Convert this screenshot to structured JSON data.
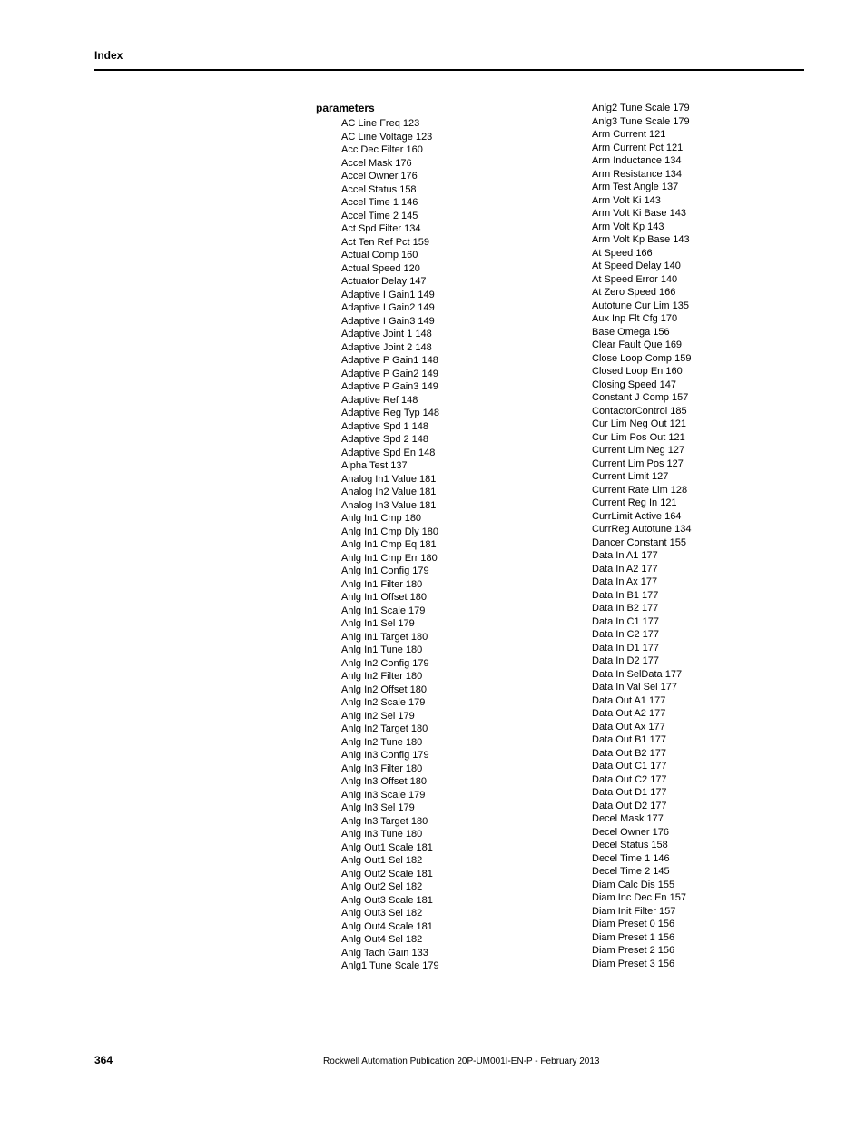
{
  "header_label": "Index",
  "section_title": "parameters",
  "col1": [
    "AC Line Freq 123",
    "AC Line Voltage 123",
    "Acc Dec Filter 160",
    "Accel Mask 176",
    "Accel Owner 176",
    "Accel Status 158",
    "Accel Time 1 146",
    "Accel Time 2 145",
    "Act Spd Filter 134",
    "Act Ten Ref Pct 159",
    "Actual Comp 160",
    "Actual Speed 120",
    "Actuator Delay 147",
    "Adaptive I Gain1 149",
    "Adaptive I Gain2 149",
    "Adaptive I Gain3 149",
    "Adaptive Joint 1 148",
    "Adaptive Joint 2 148",
    "Adaptive P Gain1 148",
    "Adaptive P Gain2 149",
    "Adaptive P Gain3 149",
    "Adaptive Ref 148",
    "Adaptive Reg Typ 148",
    "Adaptive Spd 1 148",
    "Adaptive Spd 2 148",
    "Adaptive Spd En 148",
    "Alpha Test 137",
    "Analog In1 Value 181",
    "Analog In2 Value 181",
    "Analog In3 Value 181",
    "Anlg In1 Cmp 180",
    "Anlg In1 Cmp Dly 180",
    "Anlg In1 Cmp Eq 181",
    "Anlg In1 Cmp Err 180",
    "Anlg In1 Config 179",
    "Anlg In1 Filter 180",
    "Anlg In1 Offset 180",
    "Anlg In1 Scale 179",
    "Anlg In1 Sel 179",
    "Anlg In1 Target 180",
    "Anlg In1 Tune 180",
    "Anlg In2 Config 179",
    "Anlg In2 Filter 180",
    "Anlg In2 Offset 180",
    "Anlg In2 Scale 179",
    "Anlg In2 Sel 179",
    "Anlg In2 Target 180",
    "Anlg In2 Tune 180",
    "Anlg In3 Config 179",
    "Anlg In3 Filter 180",
    "Anlg In3 Offset 180",
    "Anlg In3 Scale 179",
    "Anlg In3 Sel 179",
    "Anlg In3 Target 180",
    "Anlg In3 Tune 180",
    "Anlg Out1 Scale 181",
    "Anlg Out1 Sel 182",
    "Anlg Out2 Scale 181",
    "Anlg Out2 Sel 182",
    "Anlg Out3 Scale 181",
    "Anlg Out3 Sel 182",
    "Anlg Out4 Scale 181",
    "Anlg Out4 Sel 182",
    "Anlg Tach Gain 133",
    "Anlg1 Tune Scale 179"
  ],
  "col2": [
    "Anlg2 Tune Scale 179",
    "Anlg3 Tune Scale 179",
    "Arm Current 121",
    "Arm Current Pct 121",
    "Arm Inductance 134",
    "Arm Resistance 134",
    "Arm Test Angle 137",
    "Arm Volt Ki 143",
    "Arm Volt Ki Base 143",
    "Arm Volt Kp 143",
    "Arm Volt Kp Base 143",
    "At Speed 166",
    "At Speed Delay 140",
    "At Speed Error 140",
    "At Zero Speed 166",
    "Autotune Cur Lim 135",
    "Aux Inp Flt Cfg 170",
    "Base Omega 156",
    "Clear Fault Que 169",
    "Close Loop Comp 159",
    "Closed Loop En 160",
    "Closing Speed 147",
    "Constant J Comp 157",
    "ContactorControl 185",
    "Cur Lim Neg Out 121",
    "Cur Lim Pos Out 121",
    "Current Lim Neg 127",
    "Current Lim Pos 127",
    "Current Limit 127",
    "Current Rate Lim 128",
    "Current Reg In 121",
    "CurrLimit Active 164",
    "CurrReg Autotune 134",
    "Dancer Constant 155",
    "Data In A1 177",
    "Data In A2 177",
    "Data In Ax 177",
    "Data In B1 177",
    "Data In B2 177",
    "Data In C1 177",
    "Data In C2 177",
    "Data In D1 177",
    "Data In D2 177",
    "Data In SelData 177",
    "Data In Val Sel 177",
    "Data Out A1 177",
    "Data Out A2 177",
    "Data Out Ax 177",
    "Data Out B1 177",
    "Data Out B2 177",
    "Data Out C1 177",
    "Data Out C2 177",
    "Data Out D1 177",
    "Data Out D2 177",
    "Decel Mask 177",
    "Decel Owner 176",
    "Decel Status 158",
    "Decel Time 1 146",
    "Decel Time 2 145",
    "Diam Calc Dis 155",
    "Diam Inc Dec En 157",
    "Diam Init Filter 157",
    "Diam Preset 0 156",
    "Diam Preset 1 156",
    "Diam Preset 2 156",
    "Diam Preset 3 156"
  ],
  "page_number": "364",
  "footer_text": "Rockwell Automation Publication 20P-UM001I-EN-P - February 2013"
}
